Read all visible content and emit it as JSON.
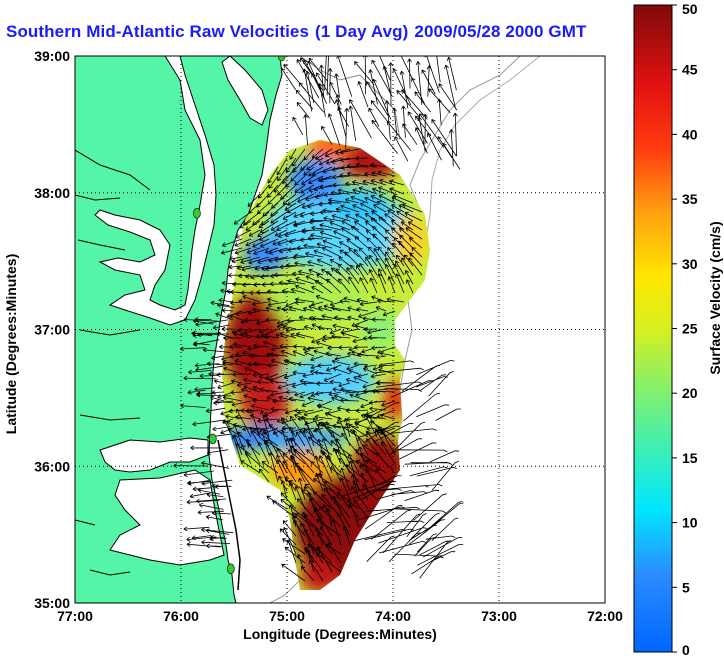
{
  "title": {
    "prefix": "Southern Mid-Atlantic Raw Velocities",
    "avg": "(1 Day Avg)",
    "datetime": "2009/05/28 2000 GMT"
  },
  "axes": {
    "xlabel": "Longitude (Degrees:Minutes)",
    "ylabel": "Latitude (Degrees:Minutes)",
    "x_ticks": [
      "77:00",
      "76:00",
      "75:00",
      "74:00",
      "73:00",
      "72:00"
    ],
    "y_ticks": [
      "39:00",
      "38:00",
      "37:00",
      "36:00",
      "35:00"
    ],
    "lon_range": [
      -77,
      -72
    ],
    "lat_range": [
      35,
      39
    ]
  },
  "colorbar": {
    "label": "Surface Velocity (cm/s)",
    "ticks": [
      "50",
      "45",
      "40",
      "35",
      "30",
      "25",
      "20",
      "15",
      "10",
      "5",
      "0"
    ],
    "range": [
      0,
      50
    ]
  },
  "colors": {
    "land": "#55f5a8",
    "water": "#ffffff",
    "coast": "#000000",
    "title": "#1a1aff",
    "station": "#33cc33"
  },
  "stations": [
    {
      "lon": -75.05,
      "lat": 39.0
    },
    {
      "lon": -75.85,
      "lat": 37.85
    },
    {
      "lon": -75.7,
      "lat": 36.2
    },
    {
      "lon": -75.53,
      "lat": 35.25
    }
  ]
}
